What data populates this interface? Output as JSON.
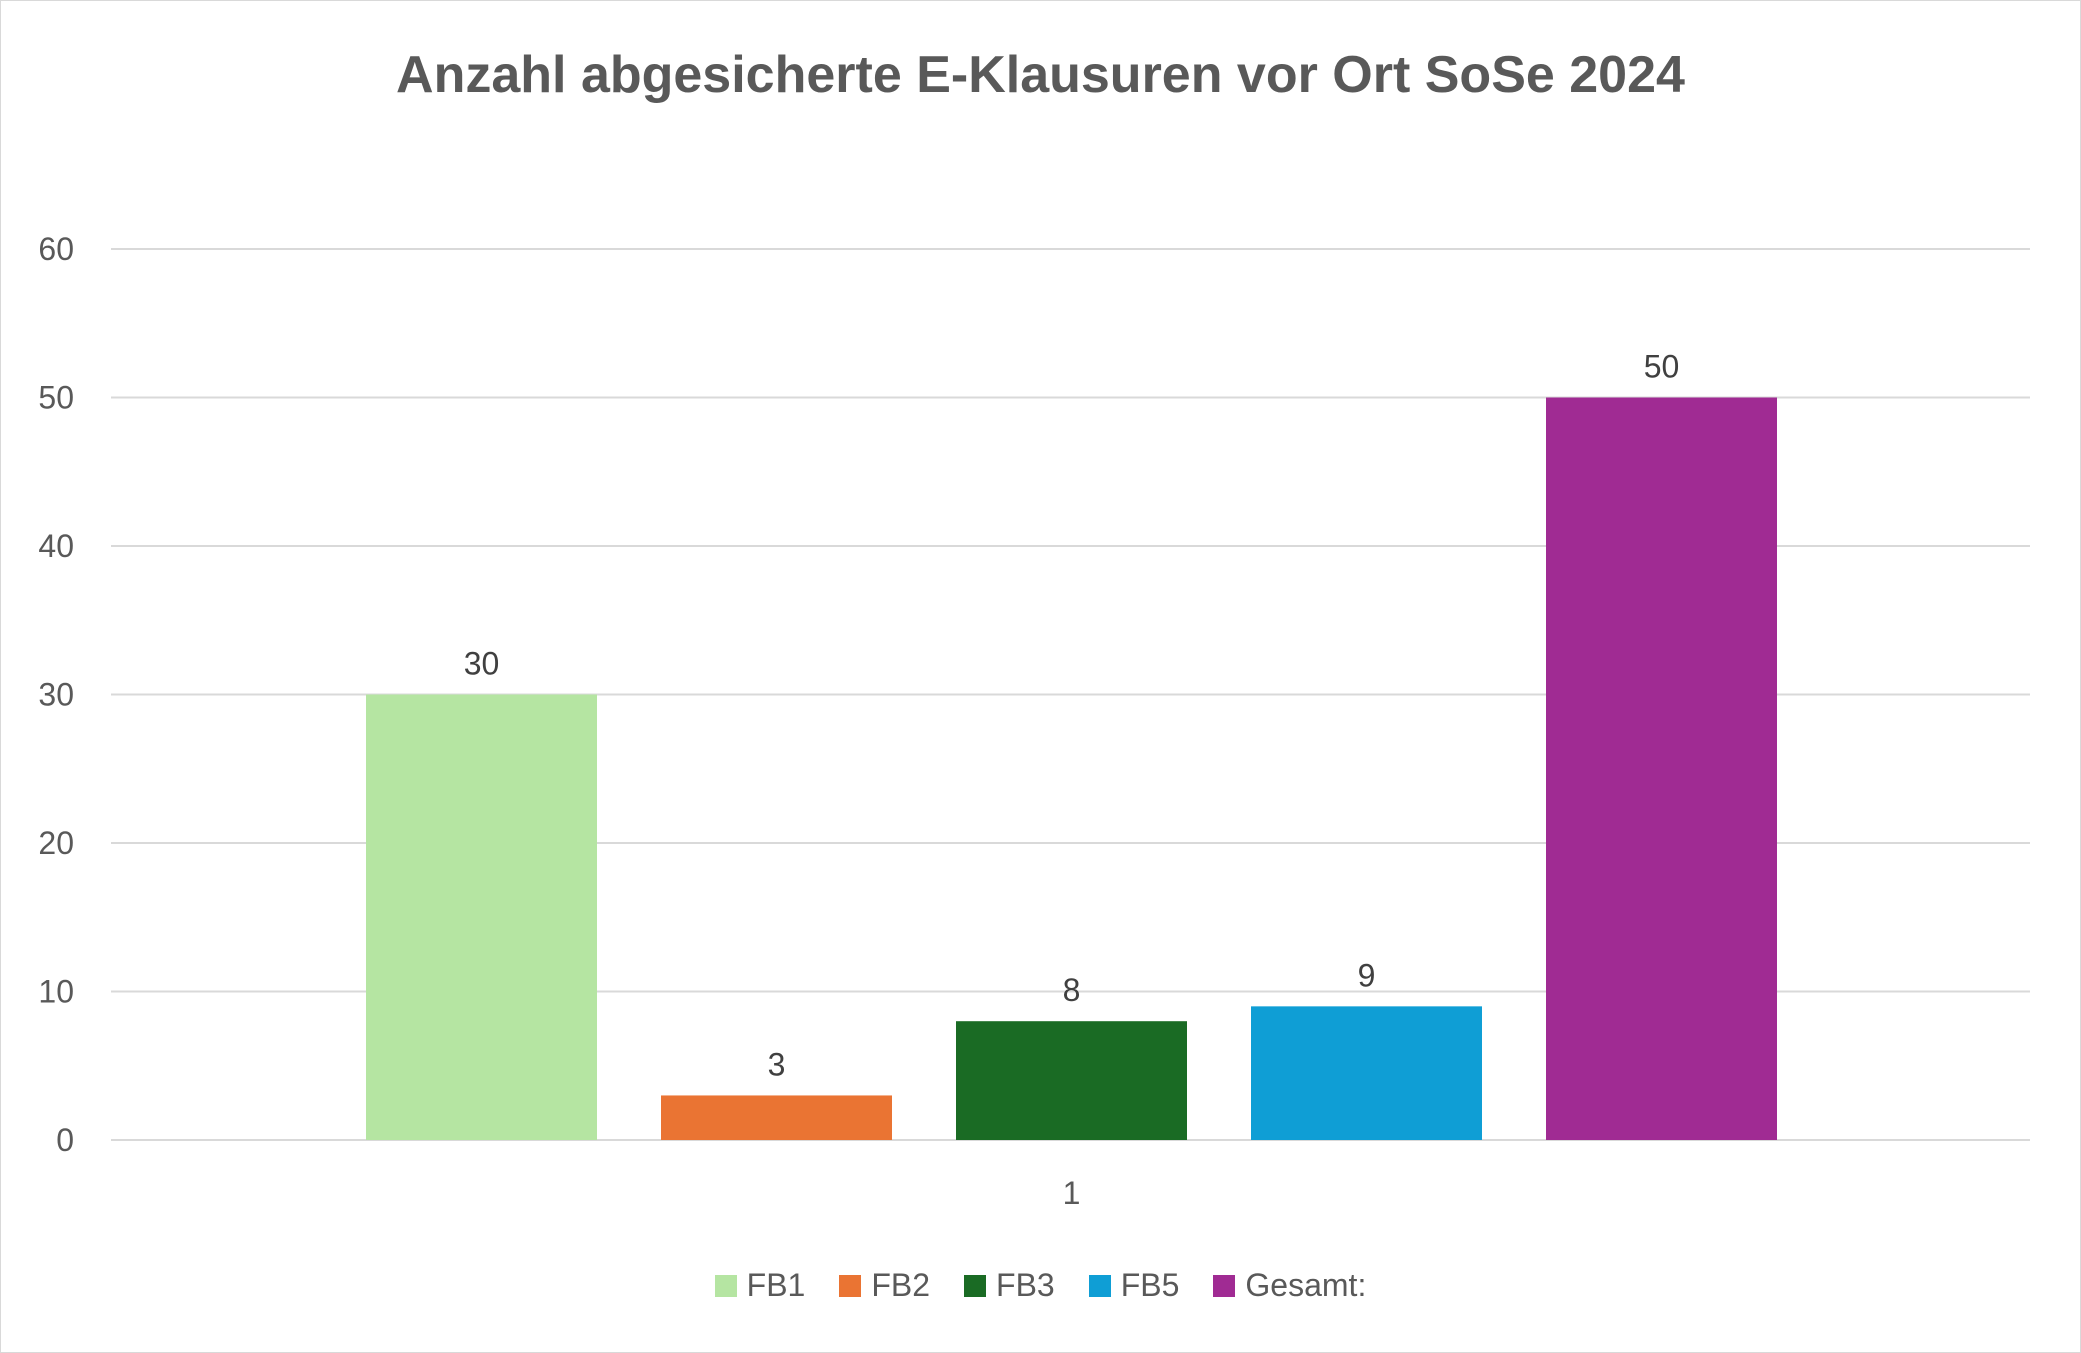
{
  "chart_data": {
    "type": "bar",
    "title": "Anzahl abgesicherte E-Klausuren vor Ort SoSe 2024",
    "categories": [
      "1"
    ],
    "series": [
      {
        "name": "FB1",
        "values": [
          30
        ],
        "color": "#b5e5a2"
      },
      {
        "name": "FB2",
        "values": [
          3
        ],
        "color": "#ea7433"
      },
      {
        "name": "FB3",
        "values": [
          8
        ],
        "color": "#1a6b24"
      },
      {
        "name": "FB5",
        "values": [
          9
        ],
        "color": "#0f9ed5"
      },
      {
        "name": "Gesamt:",
        "values": [
          50
        ],
        "color": "#a02b93"
      }
    ],
    "xlabel": "",
    "ylabel": "",
    "ylim": [
      0,
      60
    ],
    "yticks": [
      0,
      10,
      20,
      30,
      40,
      50,
      60
    ],
    "grid": true,
    "data_labels": true,
    "legend": "bottom"
  }
}
